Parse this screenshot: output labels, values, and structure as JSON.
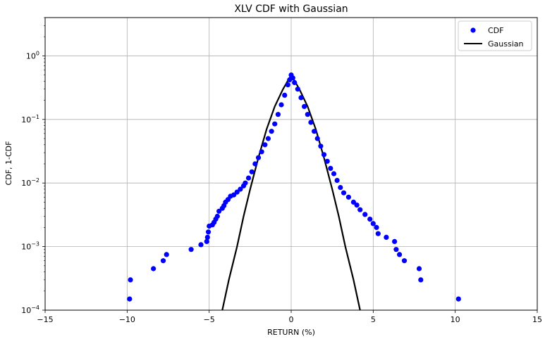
{
  "chart_data": {
    "type": "scatter",
    "title": "XLV CDF with Gaussian",
    "xlabel": "RETURN (%)",
    "ylabel": "CDF, 1-CDF",
    "xlim": [
      -15,
      15
    ],
    "ylim": [
      0.0001,
      4
    ],
    "yscale": "log",
    "grid": true,
    "legend_position": "upper right",
    "x_ticks": [
      {
        "value": -15,
        "label": "−15"
      },
      {
        "value": -10,
        "label": "−10"
      },
      {
        "value": -5,
        "label": "−5"
      },
      {
        "value": 0,
        "label": "0"
      },
      {
        "value": 5,
        "label": "5"
      },
      {
        "value": 10,
        "label": "10"
      },
      {
        "value": 15,
        "label": "15"
      }
    ],
    "y_ticks": [
      {
        "value": 0.0001,
        "base": "10",
        "exp": "−4"
      },
      {
        "value": 0.001,
        "base": "10",
        "exp": "−3"
      },
      {
        "value": 0.01,
        "base": "10",
        "exp": "−2"
      },
      {
        "value": 0.1,
        "base": "10",
        "exp": "−1"
      },
      {
        "value": 1,
        "base": "10",
        "exp": "0"
      }
    ],
    "series": [
      {
        "name": "CDF",
        "kind": "scatter",
        "color": "#0000ff",
        "points": [
          [
            -9.85,
            0.00015
          ],
          [
            -9.8,
            0.0003
          ],
          [
            -8.4,
            0.00045
          ],
          [
            -7.8,
            0.0006
          ],
          [
            -7.6,
            0.00075
          ],
          [
            -6.1,
            0.0009
          ],
          [
            -5.5,
            0.00107
          ],
          [
            -5.15,
            0.0012
          ],
          [
            -5.1,
            0.0014
          ],
          [
            -5.05,
            0.0017
          ],
          [
            -5.0,
            0.0021
          ],
          [
            -4.8,
            0.0022
          ],
          [
            -4.7,
            0.0024
          ],
          [
            -4.6,
            0.0027
          ],
          [
            -4.5,
            0.003
          ],
          [
            -4.4,
            0.0036
          ],
          [
            -4.2,
            0.004
          ],
          [
            -4.1,
            0.0044
          ],
          [
            -4.0,
            0.005
          ],
          [
            -3.85,
            0.0055
          ],
          [
            -3.7,
            0.0062
          ],
          [
            -3.5,
            0.0065
          ],
          [
            -3.3,
            0.0072
          ],
          [
            -3.1,
            0.008
          ],
          [
            -2.9,
            0.009
          ],
          [
            -2.8,
            0.01
          ],
          [
            -2.6,
            0.012
          ],
          [
            -2.4,
            0.015
          ],
          [
            -2.2,
            0.02
          ],
          [
            -2.0,
            0.025
          ],
          [
            -1.8,
            0.031
          ],
          [
            -1.6,
            0.04
          ],
          [
            -1.4,
            0.05
          ],
          [
            -1.2,
            0.065
          ],
          [
            -1.0,
            0.085
          ],
          [
            -0.8,
            0.12
          ],
          [
            -0.6,
            0.17
          ],
          [
            -0.4,
            0.24
          ],
          [
            -0.2,
            0.35
          ],
          [
            -0.1,
            0.42
          ],
          [
            0.0,
            0.5
          ],
          [
            0.1,
            0.45
          ],
          [
            0.2,
            0.38
          ],
          [
            0.4,
            0.3
          ],
          [
            0.6,
            0.22
          ],
          [
            0.8,
            0.16
          ],
          [
            1.0,
            0.12
          ],
          [
            1.2,
            0.09
          ],
          [
            1.4,
            0.065
          ],
          [
            1.6,
            0.05
          ],
          [
            1.8,
            0.038
          ],
          [
            2.0,
            0.028
          ],
          [
            2.2,
            0.022
          ],
          [
            2.4,
            0.017
          ],
          [
            2.6,
            0.014
          ],
          [
            2.8,
            0.011
          ],
          [
            3.0,
            0.0085
          ],
          [
            3.2,
            0.007
          ],
          [
            3.5,
            0.006
          ],
          [
            3.8,
            0.005
          ],
          [
            4.0,
            0.0045
          ],
          [
            4.2,
            0.0038
          ],
          [
            4.5,
            0.0032
          ],
          [
            4.8,
            0.0027
          ],
          [
            5.0,
            0.0023
          ],
          [
            5.2,
            0.002
          ],
          [
            5.3,
            0.0016
          ],
          [
            5.8,
            0.0014
          ],
          [
            6.3,
            0.0012
          ],
          [
            6.4,
            0.0009
          ],
          [
            6.6,
            0.00075
          ],
          [
            6.9,
            0.0006
          ],
          [
            7.8,
            0.00045
          ],
          [
            7.9,
            0.0003
          ],
          [
            10.2,
            0.00015
          ]
        ]
      },
      {
        "name": "Gaussian",
        "kind": "line",
        "color": "#000000",
        "points": [
          [
            -4.2,
            0.0001
          ],
          [
            -3.8,
            0.0003
          ],
          [
            -3.3,
            0.001
          ],
          [
            -2.9,
            0.003
          ],
          [
            -2.5,
            0.008
          ],
          [
            -2.0,
            0.025
          ],
          [
            -1.5,
            0.07
          ],
          [
            -1.0,
            0.16
          ],
          [
            -0.5,
            0.3
          ],
          [
            0.0,
            0.5
          ],
          [
            0.5,
            0.3
          ],
          [
            1.0,
            0.16
          ],
          [
            1.5,
            0.07
          ],
          [
            2.0,
            0.025
          ],
          [
            2.5,
            0.008
          ],
          [
            2.9,
            0.003
          ],
          [
            3.3,
            0.001
          ],
          [
            3.8,
            0.0003
          ],
          [
            4.2,
            0.0001
          ]
        ]
      }
    ]
  }
}
